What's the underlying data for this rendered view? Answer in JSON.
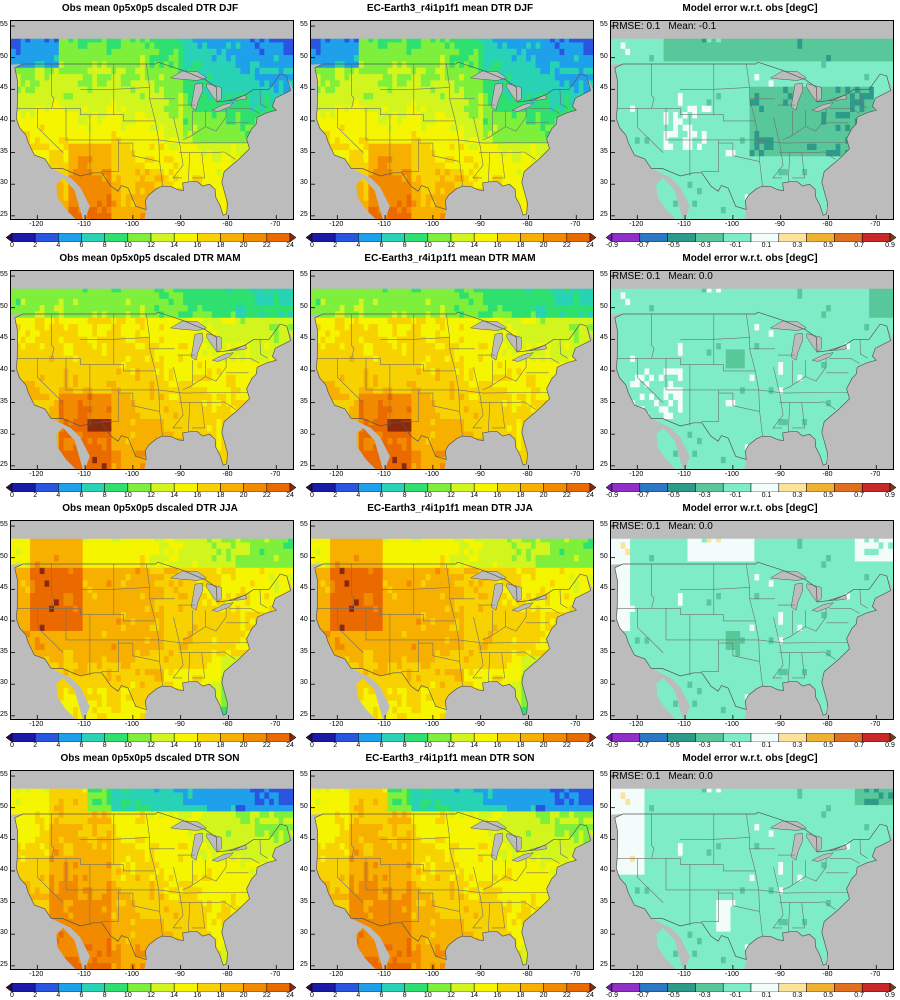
{
  "panels": [
    {
      "title": "Obs mean 0p5x0p5 dscaled DTR DJF",
      "kind": "abs",
      "season": "DJF"
    },
    {
      "title": "EC-Earth3_r4i1p1f1 mean DTR DJF",
      "kind": "abs",
      "season": "DJF"
    },
    {
      "title": "Model error w.r.t. obs [degC]",
      "kind": "err",
      "season": "DJF",
      "rmse": "RMSE: 0.1",
      "mean": "Mean: -0.1"
    },
    {
      "title": "Obs mean 0p5x0p5 dscaled DTR MAM",
      "kind": "abs",
      "season": "MAM"
    },
    {
      "title": "EC-Earth3_r4i1p1f1 mean DTR MAM",
      "kind": "abs",
      "season": "MAM"
    },
    {
      "title": "Model error w.r.t. obs [degC]",
      "kind": "err",
      "season": "MAM",
      "rmse": "RMSE: 0.1",
      "mean": "Mean: 0.0"
    },
    {
      "title": "Obs mean 0p5x0p5 dscaled DTR JJA",
      "kind": "abs",
      "season": "JJA"
    },
    {
      "title": "EC-Earth3_r4i1p1f1 mean DTR JJA",
      "kind": "abs",
      "season": "JJA"
    },
    {
      "title": "Model error w.r.t. obs [degC]",
      "kind": "err",
      "season": "JJA",
      "rmse": "RMSE: 0.1",
      "mean": "Mean: 0.0"
    },
    {
      "title": "Obs mean 0p5x0p5 dscaled DTR SON",
      "kind": "abs",
      "season": "SON"
    },
    {
      "title": "EC-Earth3_r4i1p1f1 mean DTR SON",
      "kind": "abs",
      "season": "SON"
    },
    {
      "title": "Model error w.r.t. obs [degC]",
      "kind": "err",
      "season": "SON",
      "rmse": "RMSE: 0.1",
      "mean": "Mean: 0.0"
    }
  ],
  "axes": {
    "lon_ticks": [
      "-120",
      "-110",
      "-100",
      "-90",
      "-80",
      "-70"
    ],
    "lat_ticks": [
      "55",
      "50",
      "45",
      "40",
      "35",
      "30",
      "25"
    ],
    "lon_values": [
      -120,
      -110,
      -100,
      -90,
      -80,
      -70
    ],
    "lat_values": [
      55,
      50,
      45,
      40,
      35,
      30,
      25
    ],
    "lon_range": [
      -125.5,
      -66.5
    ],
    "lat_range": [
      24.5,
      55.8
    ]
  },
  "colorbars": {
    "abs": {
      "labels": [
        "0",
        "2",
        "4",
        "6",
        "8",
        "10",
        "12",
        "14",
        "16",
        "18",
        "20",
        "22",
        "24"
      ],
      "colors": [
        "#2a0a3a",
        "#1a1aa8",
        "#2a55e0",
        "#1fa0ea",
        "#28d2b4",
        "#2ee070",
        "#7ef03c",
        "#d2f51e",
        "#f6f500",
        "#f8d200",
        "#f8b000",
        "#f28a00",
        "#ea6a00",
        "#8b2a0a"
      ]
    },
    "err": {
      "labels": [
        "-0.9",
        "-0.7",
        "-0.5",
        "-0.3",
        "-0.1",
        "0.1",
        "0.3",
        "0.5",
        "0.7",
        "0.9"
      ],
      "colors": [
        "#6a1ea0",
        "#9030c8",
        "#2c78c4",
        "#2e9a8a",
        "#58c89a",
        "#7fecc8",
        "#f2fdfb",
        "#fde29a",
        "#f0b030",
        "#e07020",
        "#c82828",
        "#7a3a1a"
      ]
    }
  },
  "colors": {
    "ocean": "#bcbcbc",
    "border": "#707070",
    "coast": "#555555"
  }
}
